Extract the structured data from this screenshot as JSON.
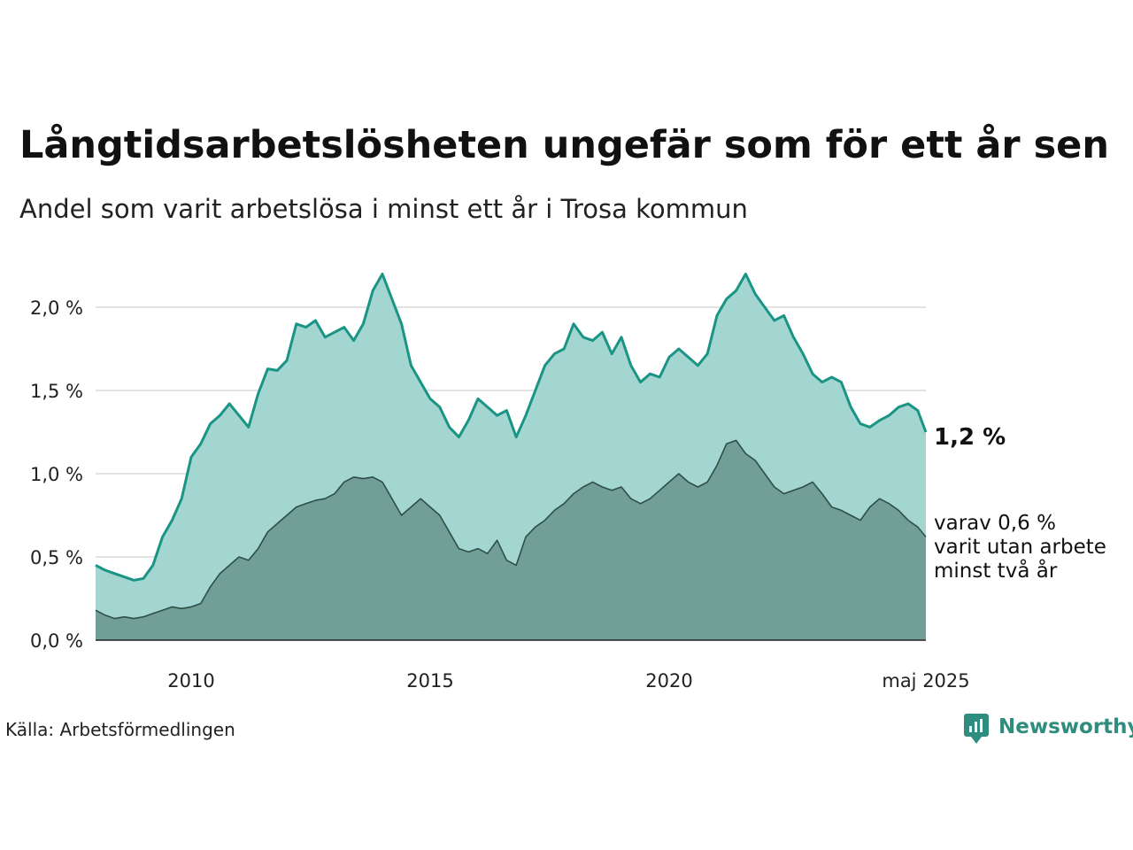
{
  "title": "Långtidsarbetslösheten ungefär som för ett år sen",
  "subtitle": "Andel som varit arbetslösa i minst ett år i Trosa kommun",
  "source": "Källa: Arbetsförmedlingen",
  "brand": {
    "name": "Newsworthy"
  },
  "colors": {
    "upper_line": "#1a9484",
    "upper_fill": "#a3d6d0",
    "lower_line": "#2e4e48",
    "lower_fill": "#729e98",
    "grid": "#e2e2e2",
    "brand": "#2e8d7e"
  },
  "labels": {
    "upper_end": "1,2 %",
    "lower_end_lines": [
      "varav 0,6 %",
      "varit utan arbete",
      "minst två år"
    ]
  },
  "chart_data": {
    "type": "area",
    "x_start": "2008-01",
    "x_end": "2025-05",
    "xlim": [
      2008.0,
      2025.37
    ],
    "ylim": [
      0,
      2.0
    ],
    "yticks": [
      {
        "value": 0.0,
        "label": "0,0 %"
      },
      {
        "value": 0.5,
        "label": "0,5 %"
      },
      {
        "value": 1.0,
        "label": "1,0 %"
      },
      {
        "value": 1.5,
        "label": "1,5 %"
      },
      {
        "value": 2.0,
        "label": "2,0 %"
      }
    ],
    "xticks": [
      {
        "value": 2010.0,
        "label": "2010"
      },
      {
        "value": 2015.0,
        "label": "2015"
      },
      {
        "value": 2020.0,
        "label": "2020"
      },
      {
        "value": 2025.37,
        "label": "maj 2025"
      }
    ],
    "grid": true,
    "legend": "none",
    "series": [
      {
        "key": "upper",
        "points": [
          [
            2008.0,
            0.45
          ],
          [
            2008.2,
            0.42
          ],
          [
            2008.4,
            0.4
          ],
          [
            2008.6,
            0.38
          ],
          [
            2008.8,
            0.36
          ],
          [
            2009.0,
            0.37
          ],
          [
            2009.2,
            0.45
          ],
          [
            2009.4,
            0.62
          ],
          [
            2009.6,
            0.72
          ],
          [
            2009.8,
            0.85
          ],
          [
            2010.0,
            1.1
          ],
          [
            2010.2,
            1.18
          ],
          [
            2010.4,
            1.3
          ],
          [
            2010.6,
            1.35
          ],
          [
            2010.8,
            1.42
          ],
          [
            2011.0,
            1.35
          ],
          [
            2011.2,
            1.28
          ],
          [
            2011.4,
            1.48
          ],
          [
            2011.6,
            1.63
          ],
          [
            2011.8,
            1.62
          ],
          [
            2012.0,
            1.68
          ],
          [
            2012.2,
            1.9
          ],
          [
            2012.4,
            1.88
          ],
          [
            2012.6,
            1.92
          ],
          [
            2012.8,
            1.82
          ],
          [
            2013.0,
            1.85
          ],
          [
            2013.2,
            1.88
          ],
          [
            2013.4,
            1.8
          ],
          [
            2013.6,
            1.9
          ],
          [
            2013.8,
            2.1
          ],
          [
            2014.0,
            2.2
          ],
          [
            2014.2,
            2.05
          ],
          [
            2014.4,
            1.9
          ],
          [
            2014.6,
            1.65
          ],
          [
            2014.8,
            1.55
          ],
          [
            2015.0,
            1.45
          ],
          [
            2015.2,
            1.4
          ],
          [
            2015.4,
            1.28
          ],
          [
            2015.6,
            1.22
          ],
          [
            2015.8,
            1.32
          ],
          [
            2016.0,
            1.45
          ],
          [
            2016.2,
            1.4
          ],
          [
            2016.4,
            1.35
          ],
          [
            2016.6,
            1.38
          ],
          [
            2016.8,
            1.22
          ],
          [
            2017.0,
            1.35
          ],
          [
            2017.2,
            1.5
          ],
          [
            2017.4,
            1.65
          ],
          [
            2017.6,
            1.72
          ],
          [
            2017.8,
            1.75
          ],
          [
            2018.0,
            1.9
          ],
          [
            2018.2,
            1.82
          ],
          [
            2018.4,
            1.8
          ],
          [
            2018.6,
            1.85
          ],
          [
            2018.8,
            1.72
          ],
          [
            2019.0,
            1.82
          ],
          [
            2019.2,
            1.65
          ],
          [
            2019.4,
            1.55
          ],
          [
            2019.6,
            1.6
          ],
          [
            2019.8,
            1.58
          ],
          [
            2020.0,
            1.7
          ],
          [
            2020.2,
            1.75
          ],
          [
            2020.4,
            1.7
          ],
          [
            2020.6,
            1.65
          ],
          [
            2020.8,
            1.72
          ],
          [
            2021.0,
            1.95
          ],
          [
            2021.2,
            2.05
          ],
          [
            2021.4,
            2.1
          ],
          [
            2021.6,
            2.2
          ],
          [
            2021.8,
            2.08
          ],
          [
            2022.0,
            2.0
          ],
          [
            2022.2,
            1.92
          ],
          [
            2022.4,
            1.95
          ],
          [
            2022.6,
            1.82
          ],
          [
            2022.8,
            1.72
          ],
          [
            2023.0,
            1.6
          ],
          [
            2023.2,
            1.55
          ],
          [
            2023.4,
            1.58
          ],
          [
            2023.6,
            1.55
          ],
          [
            2023.8,
            1.4
          ],
          [
            2024.0,
            1.3
          ],
          [
            2024.2,
            1.28
          ],
          [
            2024.4,
            1.32
          ],
          [
            2024.6,
            1.35
          ],
          [
            2024.8,
            1.4
          ],
          [
            2025.0,
            1.42
          ],
          [
            2025.2,
            1.38
          ],
          [
            2025.37,
            1.25
          ]
        ]
      },
      {
        "key": "lower",
        "points": [
          [
            2008.0,
            0.18
          ],
          [
            2008.2,
            0.15
          ],
          [
            2008.4,
            0.13
          ],
          [
            2008.6,
            0.14
          ],
          [
            2008.8,
            0.13
          ],
          [
            2009.0,
            0.14
          ],
          [
            2009.2,
            0.16
          ],
          [
            2009.4,
            0.18
          ],
          [
            2009.6,
            0.2
          ],
          [
            2009.8,
            0.19
          ],
          [
            2010.0,
            0.2
          ],
          [
            2010.2,
            0.22
          ],
          [
            2010.4,
            0.32
          ],
          [
            2010.6,
            0.4
          ],
          [
            2010.8,
            0.45
          ],
          [
            2011.0,
            0.5
          ],
          [
            2011.2,
            0.48
          ],
          [
            2011.4,
            0.55
          ],
          [
            2011.6,
            0.65
          ],
          [
            2011.8,
            0.7
          ],
          [
            2012.0,
            0.75
          ],
          [
            2012.2,
            0.8
          ],
          [
            2012.4,
            0.82
          ],
          [
            2012.6,
            0.84
          ],
          [
            2012.8,
            0.85
          ],
          [
            2013.0,
            0.88
          ],
          [
            2013.2,
            0.95
          ],
          [
            2013.4,
            0.98
          ],
          [
            2013.6,
            0.97
          ],
          [
            2013.8,
            0.98
          ],
          [
            2014.0,
            0.95
          ],
          [
            2014.2,
            0.85
          ],
          [
            2014.4,
            0.75
          ],
          [
            2014.6,
            0.8
          ],
          [
            2014.8,
            0.85
          ],
          [
            2015.0,
            0.8
          ],
          [
            2015.2,
            0.75
          ],
          [
            2015.4,
            0.65
          ],
          [
            2015.6,
            0.55
          ],
          [
            2015.8,
            0.53
          ],
          [
            2016.0,
            0.55
          ],
          [
            2016.2,
            0.52
          ],
          [
            2016.4,
            0.6
          ],
          [
            2016.6,
            0.48
          ],
          [
            2016.8,
            0.45
          ],
          [
            2017.0,
            0.62
          ],
          [
            2017.2,
            0.68
          ],
          [
            2017.4,
            0.72
          ],
          [
            2017.6,
            0.78
          ],
          [
            2017.8,
            0.82
          ],
          [
            2018.0,
            0.88
          ],
          [
            2018.2,
            0.92
          ],
          [
            2018.4,
            0.95
          ],
          [
            2018.6,
            0.92
          ],
          [
            2018.8,
            0.9
          ],
          [
            2019.0,
            0.92
          ],
          [
            2019.2,
            0.85
          ],
          [
            2019.4,
            0.82
          ],
          [
            2019.6,
            0.85
          ],
          [
            2019.8,
            0.9
          ],
          [
            2020.0,
            0.95
          ],
          [
            2020.2,
            1.0
          ],
          [
            2020.4,
            0.95
          ],
          [
            2020.6,
            0.92
          ],
          [
            2020.8,
            0.95
          ],
          [
            2021.0,
            1.05
          ],
          [
            2021.2,
            1.18
          ],
          [
            2021.4,
            1.2
          ],
          [
            2021.6,
            1.12
          ],
          [
            2021.8,
            1.08
          ],
          [
            2022.0,
            1.0
          ],
          [
            2022.2,
            0.92
          ],
          [
            2022.4,
            0.88
          ],
          [
            2022.6,
            0.9
          ],
          [
            2022.8,
            0.92
          ],
          [
            2023.0,
            0.95
          ],
          [
            2023.2,
            0.88
          ],
          [
            2023.4,
            0.8
          ],
          [
            2023.6,
            0.78
          ],
          [
            2023.8,
            0.75
          ],
          [
            2024.0,
            0.72
          ],
          [
            2024.2,
            0.8
          ],
          [
            2024.4,
            0.85
          ],
          [
            2024.6,
            0.82
          ],
          [
            2024.8,
            0.78
          ],
          [
            2025.0,
            0.72
          ],
          [
            2025.2,
            0.68
          ],
          [
            2025.37,
            0.62
          ]
        ]
      }
    ]
  }
}
